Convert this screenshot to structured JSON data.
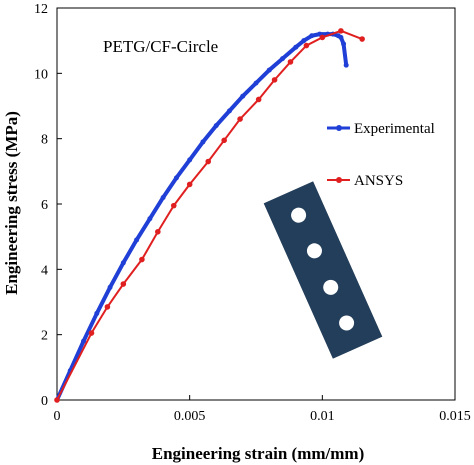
{
  "chart_data": {
    "type": "line",
    "title": "",
    "annotation": "PETG/CF-Circle",
    "xlabel": "Engineering strain (mm/mm)",
    "ylabel": "Engineering stress (MPa)",
    "xlim": [
      0,
      0.015
    ],
    "ylim": [
      0,
      12
    ],
    "xticks": [
      0,
      0.005,
      0.01,
      0.015
    ],
    "xtick_labels": [
      "0",
      "0.005",
      "0.01",
      "0.015"
    ],
    "yticks": [
      0,
      2,
      4,
      6,
      8,
      10,
      12
    ],
    "ytick_labels": [
      "0",
      "2",
      "4",
      "6",
      "8",
      "10",
      "12"
    ],
    "grid": false,
    "legend_position": "right",
    "inset": "specimen-image",
    "series": [
      {
        "name": "Experimental",
        "color": "#1f3fd6",
        "marker": "dense",
        "x": [
          0,
          0.0005,
          0.001,
          0.0015,
          0.002,
          0.0025,
          0.003,
          0.0035,
          0.004,
          0.0045,
          0.005,
          0.0055,
          0.006,
          0.0065,
          0.007,
          0.0075,
          0.008,
          0.0085,
          0.009,
          0.0093,
          0.0096,
          0.0099,
          0.0102,
          0.0104,
          0.0106,
          0.0107,
          0.0108,
          0.0109
        ],
        "y": [
          0,
          0.9,
          1.8,
          2.65,
          3.45,
          4.2,
          4.9,
          5.55,
          6.2,
          6.8,
          7.35,
          7.9,
          8.4,
          8.85,
          9.3,
          9.7,
          10.1,
          10.45,
          10.8,
          11.0,
          11.15,
          11.2,
          11.2,
          11.2,
          11.15,
          11.1,
          10.9,
          10.25
        ]
      },
      {
        "name": "ANSYS",
        "color": "#e02020",
        "marker": "circle",
        "x": [
          0,
          0.0013,
          0.0019,
          0.0025,
          0.0032,
          0.0038,
          0.0044,
          0.005,
          0.0057,
          0.0063,
          0.0069,
          0.0076,
          0.0082,
          0.0088,
          0.0094,
          0.01,
          0.0107,
          0.0115
        ],
        "y": [
          0,
          2.05,
          2.85,
          3.55,
          4.3,
          5.15,
          5.95,
          6.6,
          7.3,
          7.95,
          8.6,
          9.2,
          9.8,
          10.35,
          10.85,
          11.1,
          11.3,
          11.05
        ]
      }
    ]
  }
}
